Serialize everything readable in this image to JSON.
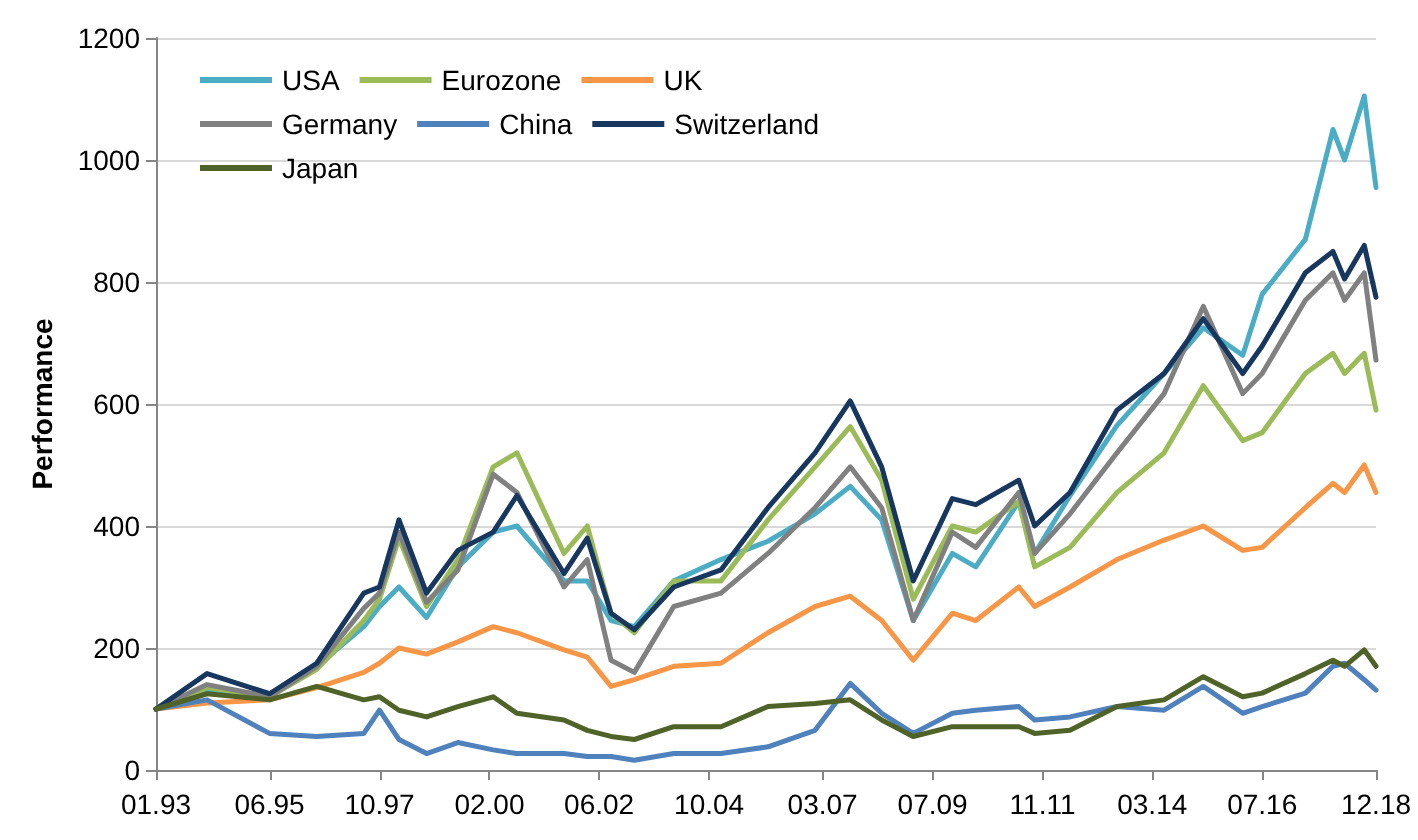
{
  "chart_data": {
    "type": "line",
    "ylabel": "Performance",
    "legend": "top left",
    "grid": "y",
    "marker": "none",
    "line_style": "solid",
    "x": [
      "1993-01",
      "1994-02",
      "1995-06",
      "1996-06",
      "1997-06",
      "1997-10",
      "1998-03",
      "1998-10",
      "1999-06",
      "2000-03",
      "2000-09",
      "2001-09",
      "2002-03",
      "2002-09",
      "2003-03",
      "2004-01",
      "2005-01",
      "2006-01",
      "2007-01",
      "2007-10",
      "2008-06",
      "2009-02",
      "2009-12",
      "2010-06",
      "2011-05",
      "2011-09",
      "2012-06",
      "2013-06",
      "2014-06",
      "2015-04",
      "2016-02",
      "2016-07",
      "2017-06",
      "2018-01",
      "2018-04",
      "2018-09",
      "2018-12"
    ],
    "xlim": [
      "1993-01",
      "2018-12"
    ],
    "xticks": [
      {
        "value": "1993-01",
        "label": "01.93"
      },
      {
        "value": "1995-06",
        "label": "06.95"
      },
      {
        "value": "1997-10",
        "label": "10.97"
      },
      {
        "value": "2000-02",
        "label": "02.00"
      },
      {
        "value": "2002-06",
        "label": "06.02"
      },
      {
        "value": "2004-10",
        "label": "10.04"
      },
      {
        "value": "2007-03",
        "label": "03.07"
      },
      {
        "value": "2009-07",
        "label": "07.09"
      },
      {
        "value": "2011-11",
        "label": "11.11"
      },
      {
        "value": "2014-03",
        "label": "03.14"
      },
      {
        "value": "2016-07",
        "label": "07.16"
      },
      {
        "value": "2018-12",
        "label": "12.18"
      }
    ],
    "ylim": [
      0,
      1200
    ],
    "yticks": [
      0,
      200,
      400,
      600,
      800,
      1000,
      1200
    ],
    "series": [
      {
        "name": "USA",
        "color": "#4bacc6",
        "values": [
          100,
          130,
          120,
          170,
          235,
          268,
          300,
          250,
          333,
          390,
          400,
          310,
          310,
          245,
          235,
          310,
          345,
          375,
          420,
          465,
          410,
          245,
          355,
          333,
          440,
          355,
          450,
          565,
          650,
          725,
          680,
          780,
          870,
          1050,
          1000,
          1105,
          955
        ]
      },
      {
        "name": "Eurozone",
        "color": "#9bbb59",
        "values": [
          100,
          135,
          120,
          165,
          245,
          280,
          380,
          268,
          345,
          497,
          520,
          355,
          400,
          257,
          225,
          310,
          310,
          410,
          497,
          563,
          475,
          280,
          400,
          390,
          440,
          333,
          365,
          455,
          520,
          630,
          540,
          553,
          650,
          683,
          650,
          683,
          590
        ]
      },
      {
        "name": "UK",
        "color": "#f79646",
        "values": [
          100,
          110,
          115,
          135,
          160,
          175,
          200,
          190,
          210,
          235,
          225,
          197,
          185,
          137,
          148,
          170,
          175,
          225,
          268,
          285,
          245,
          180,
          257,
          245,
          300,
          268,
          300,
          345,
          377,
          400,
          360,
          365,
          430,
          470,
          455,
          500,
          455
        ]
      },
      {
        "name": "Germany",
        "color": "#808080",
        "values": [
          100,
          140,
          120,
          170,
          265,
          290,
          390,
          275,
          328,
          485,
          455,
          300,
          345,
          180,
          160,
          268,
          290,
          355,
          430,
          497,
          430,
          245,
          390,
          365,
          455,
          355,
          420,
          520,
          617,
          760,
          617,
          650,
          770,
          815,
          770,
          815,
          672
        ]
      },
      {
        "name": "China",
        "color": "#4f81bd",
        "values": [
          100,
          115,
          60,
          55,
          60,
          98,
          50,
          27,
          45,
          33,
          27,
          27,
          22,
          22,
          16,
          27,
          27,
          38,
          65,
          142,
          93,
          60,
          93,
          98,
          104,
          82,
          87,
          104,
          98,
          137,
          93,
          104,
          126,
          170,
          175,
          148,
          131
        ]
      },
      {
        "name": "Switzerland",
        "color": "#17375e",
        "values": [
          100,
          158,
          125,
          175,
          290,
          300,
          410,
          290,
          360,
          390,
          450,
          322,
          380,
          257,
          230,
          300,
          328,
          430,
          520,
          605,
          497,
          310,
          445,
          435,
          475,
          400,
          455,
          590,
          650,
          740,
          650,
          695,
          815,
          850,
          805,
          860,
          775
        ]
      },
      {
        "name": "Japan",
        "color": "#4f6228",
        "values": [
          100,
          125,
          115,
          137,
          115,
          120,
          98,
          87,
          104,
          120,
          93,
          82,
          65,
          55,
          50,
          71,
          71,
          104,
          109,
          115,
          82,
          55,
          71,
          71,
          71,
          60,
          65,
          104,
          115,
          153,
          120,
          126,
          158,
          180,
          170,
          197,
          170
        ]
      }
    ]
  }
}
